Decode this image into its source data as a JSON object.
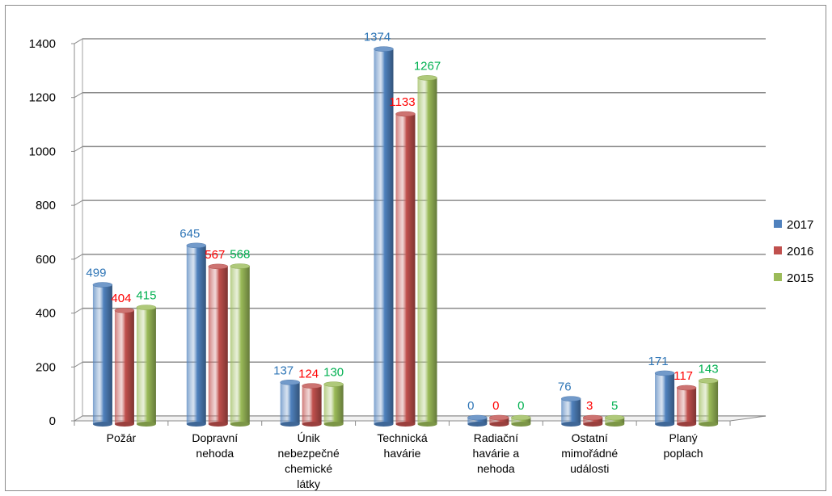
{
  "chart_data": {
    "type": "bar",
    "categories": [
      [
        "Požár"
      ],
      [
        "Dopravní",
        "nehoda"
      ],
      [
        "Únik",
        "nebezpečné",
        "chemické",
        "látky"
      ],
      [
        "Technická",
        "havárie"
      ],
      [
        "Radiační",
        "havárie a",
        "nehoda"
      ],
      [
        "Ostatní",
        "mimořádné",
        "události"
      ],
      [
        "Planý",
        "poplach"
      ]
    ],
    "series": [
      {
        "name": "2017",
        "color": "#4f81bd",
        "label_color": "#2e75b6",
        "values": [
          499,
          645,
          137,
          1374,
          0,
          76,
          171
        ]
      },
      {
        "name": "2016",
        "color": "#c0504d",
        "label_color": "#ff0000",
        "values": [
          404,
          567,
          124,
          1133,
          0,
          3,
          117
        ]
      },
      {
        "name": "2015",
        "color": "#9bbb59",
        "label_color": "#00b050",
        "values": [
          415,
          568,
          130,
          1267,
          0,
          5,
          143
        ]
      }
    ],
    "y_ticks": [
      "0",
      "200",
      "400",
      "600",
      "800",
      "1000",
      "1200",
      "1400"
    ],
    "ylim": [
      0,
      1400
    ],
    "grid": true,
    "legend_position": "right",
    "title": "",
    "xlabel": "",
    "ylabel": ""
  }
}
